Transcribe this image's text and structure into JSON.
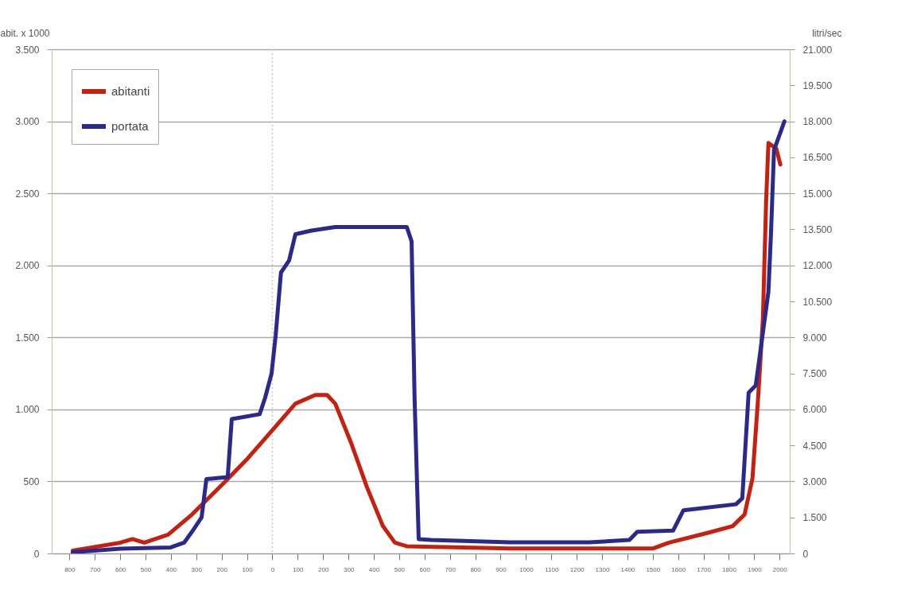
{
  "chart_data": {
    "type": "line",
    "ylabel": "abit. x 1000",
    "y2label": "litri/sec",
    "xlim": [
      -870,
      2040
    ],
    "xticks": [
      {
        "value": -800,
        "label": "800"
      },
      {
        "value": -700,
        "label": "700"
      },
      {
        "value": -600,
        "label": "600"
      },
      {
        "value": -500,
        "label": "500"
      },
      {
        "value": -400,
        "label": "400"
      },
      {
        "value": -300,
        "label": "300"
      },
      {
        "value": -200,
        "label": "200"
      },
      {
        "value": -100,
        "label": "100"
      },
      0,
      100,
      200,
      300,
      400,
      500,
      600,
      700,
      800,
      900,
      1000,
      1100,
      1200,
      1300,
      1400,
      1500,
      1600,
      1700,
      1800,
      1900,
      2000
    ],
    "ylim": [
      0,
      3500
    ],
    "yticks": [
      0,
      {
        "value": 500,
        "label": "500"
      },
      {
        "value": 1000,
        "label": "1.000"
      },
      {
        "value": 1500,
        "label": "1.500"
      },
      {
        "value": 2000,
        "label": "2.000"
      },
      {
        "value": 2500,
        "label": "2.500"
      },
      {
        "value": 3000,
        "label": "3.000"
      },
      {
        "value": 3500,
        "label": "3.500"
      }
    ],
    "y2lim": [
      0,
      21000
    ],
    "y2ticks": [
      0,
      {
        "value": 1500,
        "label": "1.500"
      },
      {
        "value": 3000,
        "label": "3.000"
      },
      {
        "value": 4500,
        "label": "4.500"
      },
      {
        "value": 6000,
        "label": "6.000"
      },
      {
        "value": 7500,
        "label": "7.500"
      },
      {
        "value": 9000,
        "label": "9.000"
      },
      {
        "value": 10500,
        "label": "10.500"
      },
      {
        "value": 12000,
        "label": "12.000"
      },
      {
        "value": 13500,
        "label": "13.500"
      },
      {
        "value": 15000,
        "label": "15.000"
      },
      {
        "value": 16500,
        "label": "16.500"
      },
      {
        "value": 18000,
        "label": "18.000"
      },
      {
        "value": 19500,
        "label": "19.500"
      },
      {
        "value": 21000,
        "label": "21.000"
      }
    ],
    "grid": "y",
    "legend": "top left",
    "line_style": "solid",
    "ref_lines": [
      {
        "axis": "x",
        "value": 0,
        "color": "#c8c8c8",
        "line_style": "dotted"
      }
    ],
    "series": [
      {
        "name": "abitanti",
        "color": "#c8200f",
        "x": [
          -787,
          -599,
          -552,
          -505,
          -411,
          -317,
          -191,
          -97,
          -3,
          91,
          169,
          216,
          248,
          310,
          373,
          436,
          483,
          530,
          937,
          1251,
          1502,
          1564,
          1721,
          1815,
          1862,
          1893,
          1915,
          1934,
          1947,
          1956,
          1987,
          2003
        ],
        "values": [
          20,
          75,
          100,
          75,
          130,
          270,
          490,
          660,
          850,
          1040,
          1100,
          1100,
          1040,
          770,
          460,
          190,
          75,
          50,
          35,
          35,
          35,
          75,
          145,
          190,
          270,
          520,
          1070,
          1620,
          2450,
          2850,
          2810,
          2700
        ]
      },
      {
        "name": "portata",
        "color": "#2a2a8c",
        "axis": "y2",
        "x": [
          -787,
          -599,
          -401,
          -348,
          -317,
          -279,
          -260,
          -176,
          -160,
          -50,
          -28,
          -3,
          13,
          34,
          66,
          91,
          154,
          248,
          530,
          549,
          561,
          577,
          624,
          937,
          1251,
          1408,
          1439,
          1580,
          1621,
          1828,
          1853,
          1878,
          1906,
          1956,
          1966,
          1978,
          2019
        ],
        "values": [
          50,
          200,
          250,
          450,
          900,
          1500,
          3100,
          3180,
          5600,
          5800,
          6500,
          7500,
          9070,
          11700,
          12200,
          13300,
          13450,
          13600,
          13600,
          13000,
          6400,
          600,
          560,
          460,
          460,
          560,
          900,
          950,
          1800,
          2050,
          2300,
          6700,
          7000,
          10900,
          13300,
          16800,
          18000
        ]
      }
    ]
  }
}
